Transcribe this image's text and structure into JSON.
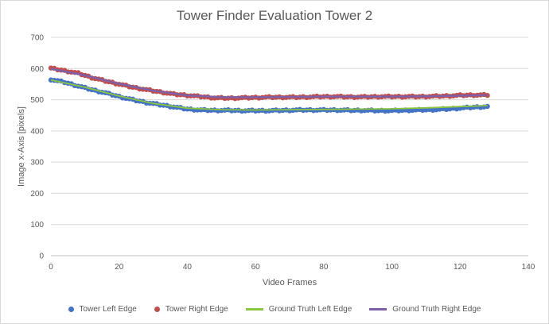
{
  "chart_data": {
    "type": "line",
    "title": "Tower Finder Evaluation Tower 2",
    "xlabel": "Video Frames",
    "ylabel": "Image x-Axis [pixels]",
    "xlim": [
      0,
      140
    ],
    "ylim": [
      0,
      700
    ],
    "xticks": [
      "0",
      "20",
      "40",
      "60",
      "80",
      "100",
      "120",
      "140"
    ],
    "yticks": [
      "0",
      "100",
      "200",
      "300",
      "400",
      "500",
      "600",
      "700"
    ],
    "grid": "horizontal",
    "legend_position": "bottom",
    "series": [
      {
        "name": "Tower Left Edge",
        "style": "markers",
        "color": "#4472c4",
        "x": [
          0,
          4,
          8,
          12,
          16,
          20,
          24,
          28,
          32,
          36,
          40,
          44,
          48,
          52,
          56,
          60,
          64,
          68,
          72,
          76,
          80,
          84,
          88,
          92,
          96,
          100,
          104,
          108,
          112,
          116,
          120,
          124,
          128
        ],
        "y": [
          565,
          556,
          544,
          532,
          522,
          510,
          500,
          491,
          484,
          477,
          470,
          467,
          466,
          466,
          465,
          465,
          465,
          466,
          467,
          467,
          467,
          467,
          466,
          466,
          465,
          465,
          466,
          467,
          468,
          470,
          473,
          476,
          478
        ]
      },
      {
        "name": "Tower Right Edge",
        "style": "markers",
        "color": "#c0504d",
        "x": [
          0,
          4,
          8,
          12,
          16,
          20,
          24,
          28,
          32,
          36,
          40,
          44,
          48,
          52,
          56,
          60,
          64,
          68,
          72,
          76,
          80,
          84,
          88,
          92,
          96,
          100,
          104,
          108,
          112,
          116,
          120,
          124,
          128
        ],
        "y": [
          601,
          593,
          585,
          571,
          560,
          550,
          540,
          532,
          525,
          518,
          514,
          510,
          506,
          505,
          506,
          507,
          508,
          508,
          508,
          509,
          510,
          510,
          509,
          509,
          510,
          510,
          510,
          510,
          511,
          512,
          514,
          515,
          515
        ]
      },
      {
        "name": "Ground Truth Left Edge",
        "style": "line",
        "color": "#8cc63f",
        "x": [
          0,
          10,
          20,
          30,
          40,
          50,
          60,
          70,
          80,
          90,
          100,
          110,
          120,
          128
        ],
        "y": [
          563,
          540,
          512,
          488,
          473,
          468,
          467,
          468,
          469,
          470,
          471,
          474,
          478,
          481
        ]
      },
      {
        "name": "Ground Truth Right Edge",
        "style": "line",
        "color": "#7f5fa8",
        "x": [
          0,
          10,
          20,
          30,
          40,
          50,
          60,
          70,
          80,
          90,
          100,
          110,
          120,
          128
        ],
        "y": [
          599,
          578,
          551,
          529,
          514,
          508,
          508,
          509,
          510,
          510,
          510,
          511,
          513,
          515
        ]
      }
    ]
  }
}
